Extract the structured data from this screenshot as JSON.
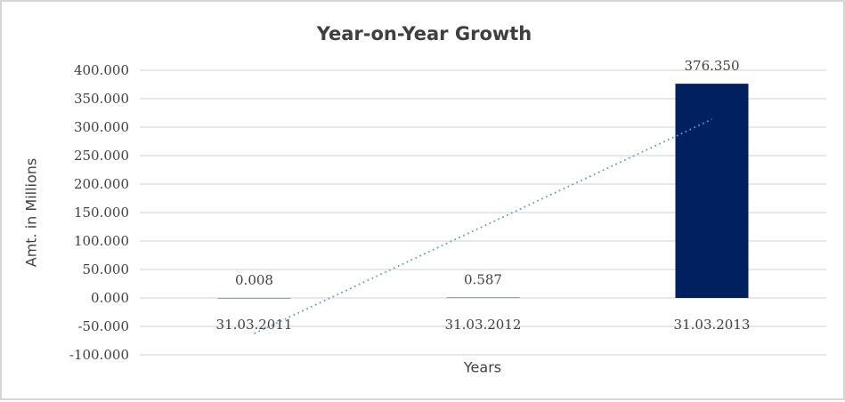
{
  "chart_data": {
    "type": "bar",
    "title": "Year-on-Year Growth",
    "xlabel": "Years",
    "ylabel": "Amt. in Millions",
    "categories": [
      "31.03.2011",
      "31.03.2012",
      "31.03.2013"
    ],
    "series": [
      {
        "name": "Amt. in Millions",
        "type": "bar",
        "values": [
          0.008,
          0.587,
          376.35
        ]
      }
    ],
    "data_labels": [
      "0.008",
      "0.587",
      "376.350"
    ],
    "ylim": [
      -100,
      400
    ],
    "ytick_step": 50,
    "ytick_decimals": 3,
    "grid": true,
    "legend": false,
    "trendline": {
      "type": "linear",
      "style": "dotted",
      "color": "#5b9bd5"
    },
    "colors": {
      "bar": "#002060",
      "trendline": "#5b9bd5",
      "gridline": "#d9d9d9",
      "text": "#404040",
      "title_text": "#3f3f3f",
      "frame_border": "#d6d6d6",
      "background": "#ffffff"
    }
  }
}
